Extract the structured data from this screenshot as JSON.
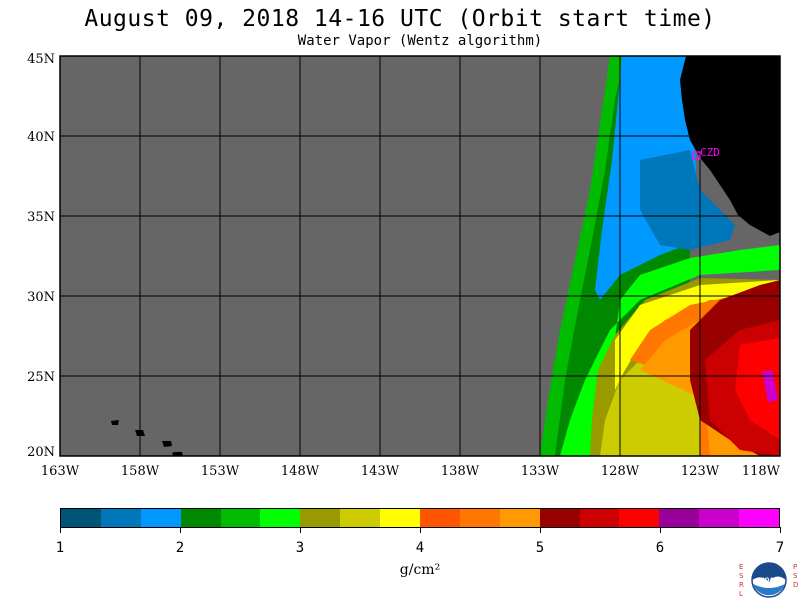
{
  "title": "August 09, 2018  14-16 UTC  (Orbit start time)",
  "subtitle": "Water Vapor (Wentz algorithm)",
  "map": {
    "lat_labels": [
      "45N",
      "40N",
      "35N",
      "30N",
      "25N",
      "20N"
    ],
    "lon_labels": [
      "163W",
      "158W",
      "153W",
      "148W",
      "143W",
      "138W",
      "133W",
      "128W",
      "123W",
      "118W"
    ],
    "station_label": "CZD",
    "colors": {
      "nodata": "#666666",
      "land": "#000000",
      "grid": "#000000",
      "station": "#ff00ff"
    }
  },
  "colorbar": {
    "unit": "g/cm²",
    "tick_labels": [
      "1",
      "2",
      "3",
      "4",
      "5",
      "6",
      "7"
    ],
    "colors": [
      "#005577",
      "#0077bb",
      "#0099ff",
      "#008800",
      "#00bb00",
      "#00ff00",
      "#999900",
      "#cccc00",
      "#ffff00",
      "#ff5500",
      "#ff7700",
      "#ff9900",
      "#990000",
      "#cc0000",
      "#ff0000",
      "#990099",
      "#cc00cc",
      "#ff00ff"
    ]
  },
  "logo": {
    "left_letters": "ESRL",
    "right_letters": "PSD",
    "center_text": "NOAA"
  }
}
